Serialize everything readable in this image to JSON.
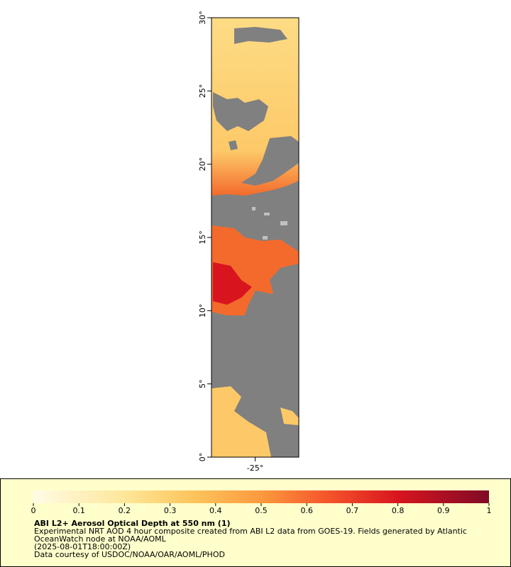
{
  "map": {
    "xlim": [
      -28,
      -22
    ],
    "ylim": [
      0,
      30
    ],
    "xticks": [
      {
        "value": -25,
        "label": "-25°"
      }
    ],
    "yticks": [
      {
        "value": 0,
        "label": "0°"
      },
      {
        "value": 5,
        "label": "5°"
      },
      {
        "value": 10,
        "label": "10°"
      },
      {
        "value": 15,
        "label": "15°"
      },
      {
        "value": 20,
        "label": "20°"
      },
      {
        "value": 25,
        "label": "25°"
      },
      {
        "value": 30,
        "label": "30°"
      }
    ]
  },
  "legend": {
    "title": "ABI L2+ Aerosol Optical Depth at 550 nm (1)",
    "colorbar": {
      "lim": [
        0,
        1
      ],
      "ticks": [
        0,
        0.1,
        0.2,
        0.3,
        0.4,
        0.5,
        0.6,
        0.7,
        0.8,
        0.9,
        1
      ]
    },
    "lines": [
      "Experimental NRT AOD 4 hour composite created from ABI L2 data from GOES-19. Fields generated by Atlantic",
      "OceanWatch node at NOAA/AOML",
      "(2025-08-01T18:00:00Z)",
      "Data courtesy of USDOC/NOAA/OAR/AOML/PHOD"
    ]
  }
}
